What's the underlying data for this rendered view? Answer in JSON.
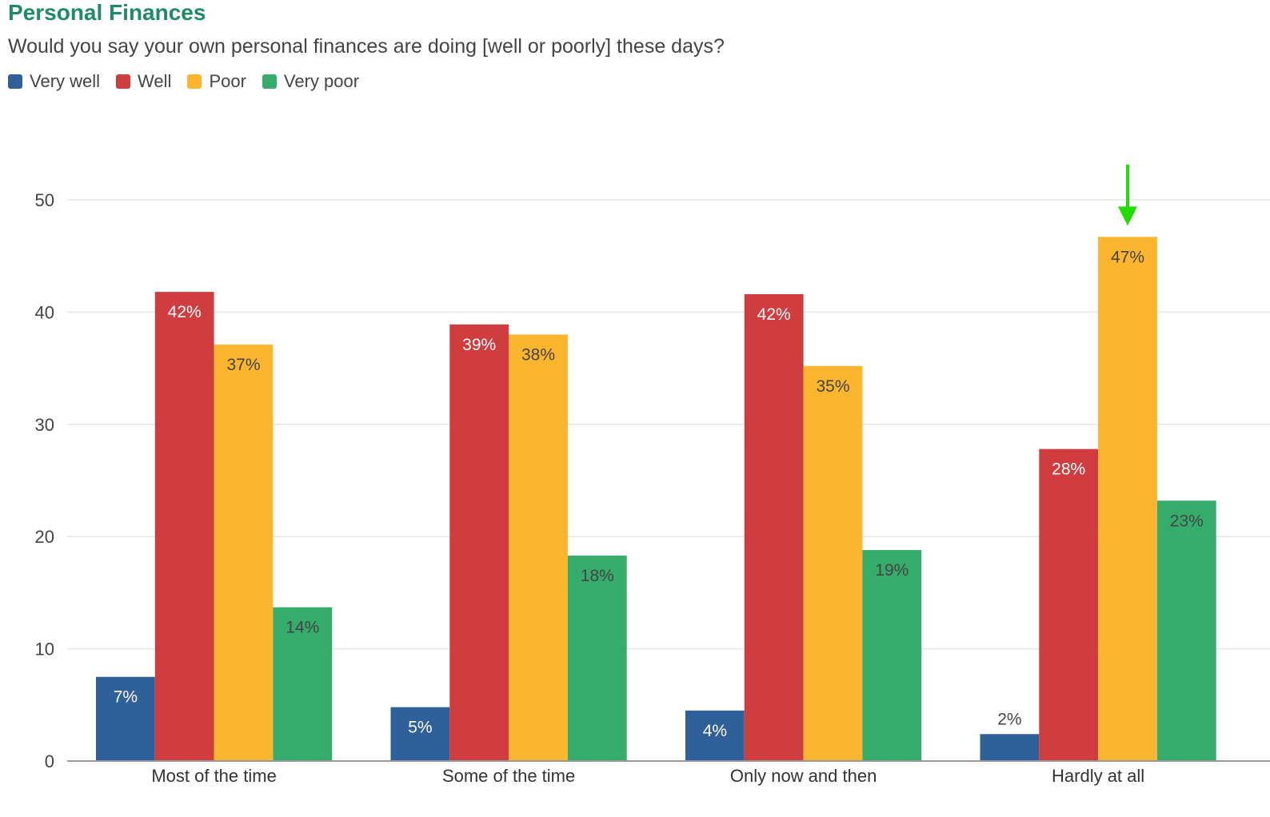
{
  "chart_data": {
    "type": "bar",
    "title": "Personal Finances",
    "subtitle": "Would you say your own personal finances are doing [well or poorly] these days?",
    "categories": [
      "Most of the time",
      "Some of the time",
      "Only now and then",
      "Hardly at all"
    ],
    "series": [
      {
        "name": "Very well",
        "color": "#30609a",
        "values": [
          7.5,
          4.8,
          4.5,
          2.4
        ],
        "labels": [
          "7%",
          "5%",
          "4%",
          "2%"
        ],
        "label_color": "#ffffff"
      },
      {
        "name": "Well",
        "color": "#cf3d3f",
        "values": [
          41.8,
          38.9,
          41.6,
          27.8
        ],
        "labels": [
          "42%",
          "39%",
          "42%",
          "28%"
        ],
        "label_color": "#ffffff"
      },
      {
        "name": "Poor",
        "color": "#fcb52e",
        "values": [
          37.1,
          38.0,
          35.2,
          46.7
        ],
        "labels": [
          "37%",
          "38%",
          "35%",
          "47%"
        ],
        "label_color": "#444444"
      },
      {
        "name": "Very poor",
        "color": "#36ac6c",
        "values": [
          13.7,
          18.3,
          18.8,
          23.2
        ],
        "labels": [
          "14%",
          "18%",
          "19%",
          "23%"
        ],
        "label_color": "#444444"
      }
    ],
    "ylim": [
      0,
      50
    ],
    "yticks": [
      0,
      10,
      20,
      30,
      40,
      50
    ],
    "xlabel": "",
    "ylabel": "",
    "grid": true,
    "legend_position": "top-left",
    "annotation": {
      "type": "arrow",
      "color": "#22dd00",
      "category": "Hardly at all",
      "series": "Poor"
    }
  }
}
